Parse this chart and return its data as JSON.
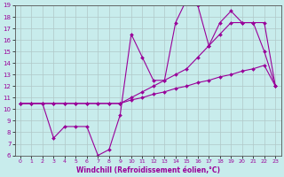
{
  "xlabel": "Windchill (Refroidissement éolien,°C)",
  "bg_color": "#c8ecec",
  "line_color": "#990099",
  "grid_color": "#b0c8c8",
  "xlim": [
    -0.5,
    23.5
  ],
  "ylim": [
    6,
    19
  ],
  "xticks": [
    0,
    1,
    2,
    3,
    4,
    5,
    6,
    7,
    8,
    9,
    10,
    11,
    12,
    13,
    14,
    15,
    16,
    17,
    18,
    19,
    20,
    21,
    22,
    23
  ],
  "yticks": [
    6,
    7,
    8,
    9,
    10,
    11,
    12,
    13,
    14,
    15,
    16,
    17,
    18,
    19
  ],
  "line1_x": [
    0,
    1,
    2,
    3,
    4,
    5,
    6,
    7,
    8,
    9,
    10,
    11,
    12,
    13,
    14,
    15,
    16,
    17,
    18,
    19,
    20,
    21,
    22,
    23
  ],
  "line1_y": [
    10.5,
    10.5,
    10.5,
    7.5,
    8.5,
    8.5,
    8.5,
    6.0,
    6.5,
    9.5,
    16.5,
    14.5,
    12.5,
    12.5,
    17.5,
    19.5,
    19.0,
    15.5,
    17.5,
    18.5,
    17.5,
    17.5,
    15.0,
    12.0
  ],
  "line2_x": [
    0,
    1,
    2,
    3,
    4,
    5,
    6,
    7,
    8,
    9,
    10,
    11,
    12,
    13,
    14,
    15,
    16,
    17,
    18,
    19,
    20,
    21,
    22,
    23
  ],
  "line2_y": [
    10.5,
    10.5,
    10.5,
    10.5,
    10.5,
    10.5,
    10.5,
    10.5,
    10.5,
    10.5,
    11.0,
    11.5,
    12.0,
    12.5,
    13.0,
    13.5,
    14.5,
    15.5,
    16.5,
    17.5,
    17.5,
    17.5,
    17.5,
    12.0
  ],
  "line3_x": [
    0,
    1,
    2,
    3,
    4,
    5,
    6,
    7,
    8,
    9,
    10,
    11,
    12,
    13,
    14,
    15,
    16,
    17,
    18,
    19,
    20,
    21,
    22,
    23
  ],
  "line3_y": [
    10.5,
    10.5,
    10.5,
    10.5,
    10.5,
    10.5,
    10.5,
    10.5,
    10.5,
    10.5,
    10.8,
    11.0,
    11.3,
    11.5,
    11.8,
    12.0,
    12.3,
    12.5,
    12.8,
    13.0,
    13.3,
    13.5,
    13.8,
    12.0
  ]
}
